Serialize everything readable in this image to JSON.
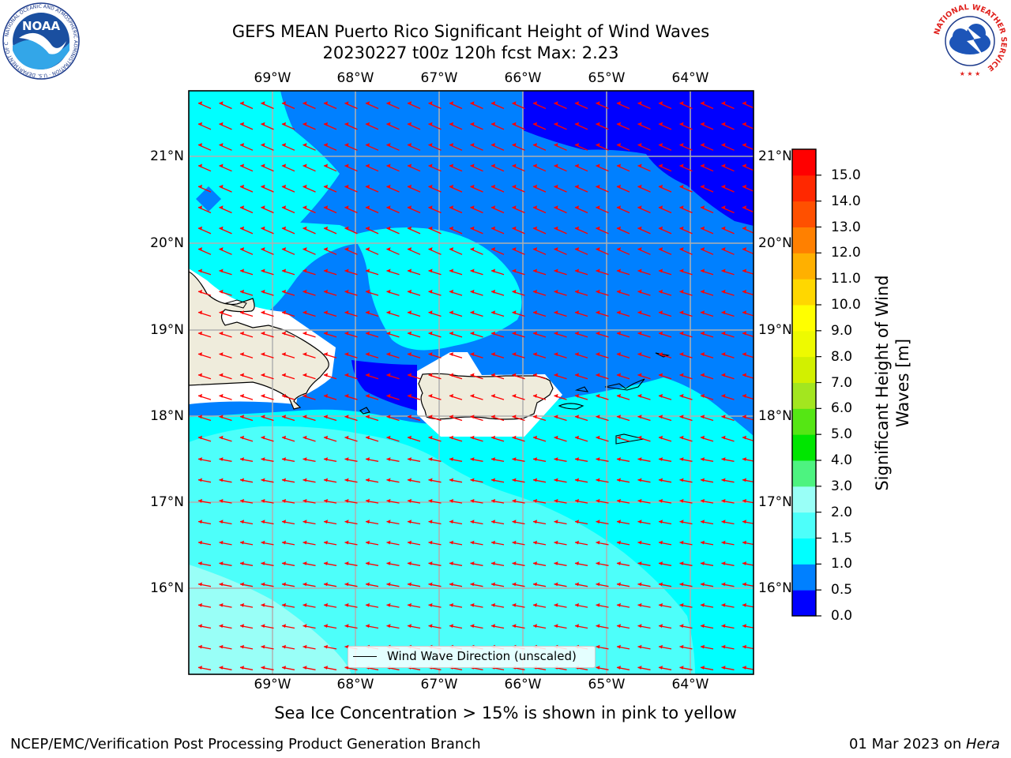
{
  "header": {
    "title_line1": "GEFS MEAN Puerto Rico Significant Height of Wind Waves",
    "title_line2": "20230227 t00z 120h fcst   Max: 2.23"
  },
  "map": {
    "lon_labels": [
      "69°W",
      "68°W",
      "67°W",
      "66°W",
      "65°W",
      "64°W"
    ],
    "lat_labels": [
      "21°N",
      "20°N",
      "19°N",
      "18°N",
      "17°N",
      "16°N"
    ],
    "legend_label": "Wind Wave Direction (unscaled)",
    "arrow_color": "#ff0000",
    "land_color": "#efecdc"
  },
  "colorbar": {
    "title_line1": "Significant Height of Wind",
    "title_line2": "Waves [m]",
    "ticks": [
      "0.0",
      "0.5",
      "1.0",
      "1.5",
      "2.0",
      "3.0",
      "4.0",
      "5.0",
      "6.0",
      "7.0",
      "8.0",
      "9.0",
      "10.0",
      "11.0",
      "12.0",
      "13.0",
      "14.0",
      "15.0"
    ],
    "colors": [
      "#0000ff",
      "#0080ff",
      "#00ffff",
      "#4dfffa",
      "#99fff7",
      "#4df380",
      "#00e600",
      "#55e614",
      "#a3e61f",
      "#d2f000",
      "#eefa00",
      "#ffff00",
      "#ffd700",
      "#ffb000",
      "#ff8000",
      "#ff5000",
      "#ff2800",
      "#ff0000"
    ]
  },
  "subtitle": "Sea Ice Concentration > 15% is shown in pink to yellow",
  "footer": {
    "left": "NCEP/EMC/Verification Post Processing Product Generation Branch",
    "right_date": "01 Mar 2023 on ",
    "right_host": "Hera"
  },
  "logos": {
    "noaa_text": "NOAA",
    "noaa_ring_text": "NATIONAL OCEANIC AND ATMOSPHERIC ADMINISTRATION · U.S. DEPARTMENT OF COMMERCE",
    "nws_ring_text": "NATIONAL WEATHER SERVICE"
  }
}
